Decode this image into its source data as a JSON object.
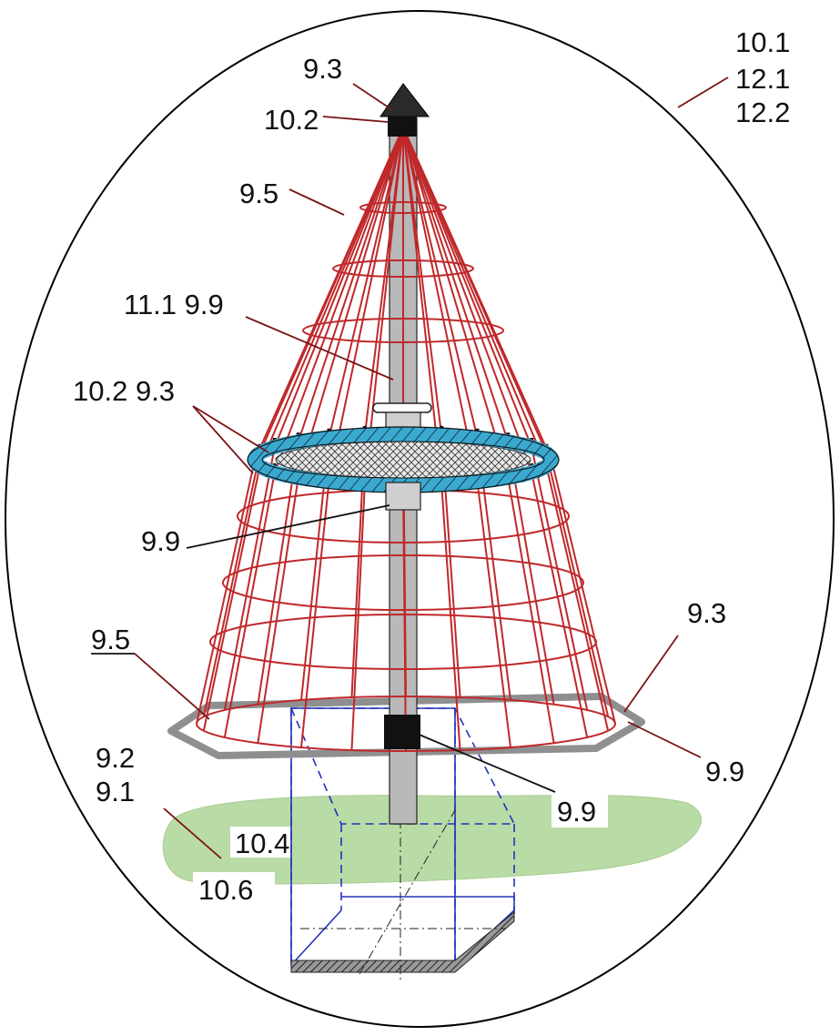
{
  "labels": {
    "top_right": [
      "10.1",
      "12.1",
      "12.2"
    ],
    "cap": "9.3",
    "cap_sleeve": "10.2",
    "upper_rope": "9.5",
    "mast": "11.1 9.9",
    "ring_clamps": "10.2 9.3",
    "ring_sleeve": "9.9",
    "lower_rope": "9.5",
    "base_clamp": "9.3",
    "base_ring": "9.9",
    "bottom_sleeve": "9.9",
    "ground": [
      "9.2",
      "9.1"
    ],
    "foundation_upper": "10.4",
    "foundation_lower": "10.6"
  },
  "colors": {
    "rope": "#c0282a",
    "mast": "#b9b9b9",
    "ring": "#3aa9cf",
    "ground": "#b9dba6",
    "foundation": "#2233bb",
    "outline": "#000000"
  }
}
